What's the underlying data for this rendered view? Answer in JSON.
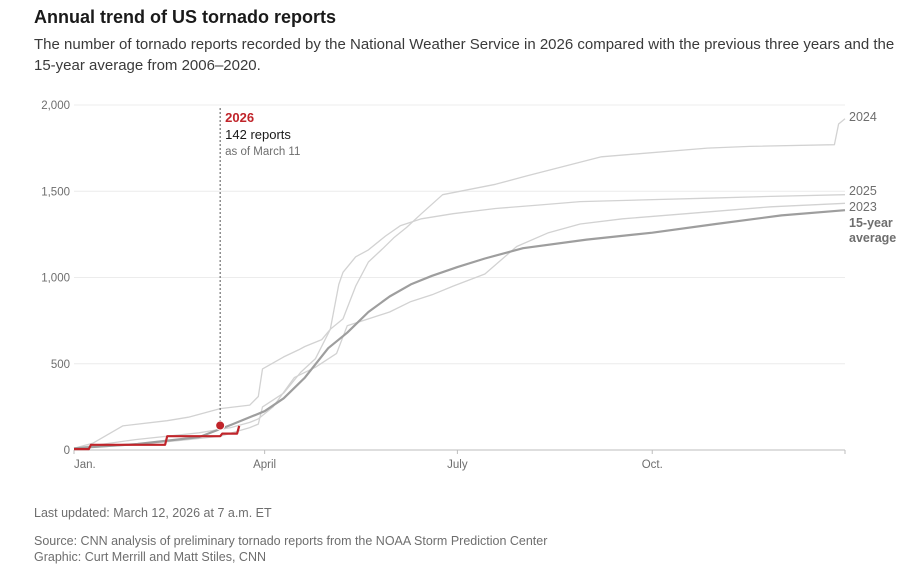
{
  "header": {
    "title": "Annual trend of US tornado reports",
    "subtitle": "The number of tornado reports recorded by the National Weather Service in 2026 compared with the previous three years and the 15-year average from 2006–2020."
  },
  "chart_data": {
    "type": "line",
    "x_unit": "day of year",
    "xlim": [
      1,
      365
    ],
    "ylim": [
      0,
      2000
    ],
    "yticks": [
      0,
      500,
      1000,
      1500,
      2000
    ],
    "ytick_labels": [
      "0",
      "500",
      "1,000",
      "1,500",
      "2,000"
    ],
    "xticks": [
      {
        "day": 1,
        "label": "Jan."
      },
      {
        "day": 91,
        "label": "April"
      },
      {
        "day": 182,
        "label": "July"
      },
      {
        "day": 274,
        "label": "Oct."
      }
    ],
    "series": [
      {
        "name": "2024",
        "label": "2024",
        "color": "#d2d2d2",
        "x": [
          1,
          10,
          24,
          45,
          55,
          70,
          84,
          88,
          90,
          100,
          107,
          110,
          118,
          122,
          128,
          134,
          140,
          147,
          152,
          158,
          165,
          175,
          200,
          215,
          250,
          300,
          320,
          360,
          362,
          365
        ],
        "y": [
          10,
          40,
          140,
          170,
          190,
          240,
          260,
          310,
          470,
          540,
          580,
          600,
          640,
          700,
          760,
          950,
          1090,
          1170,
          1230,
          1290,
          1370,
          1480,
          1540,
          1590,
          1700,
          1750,
          1760,
          1770,
          1890,
          1920
        ]
      },
      {
        "name": "2025",
        "label": "2025",
        "color": "#d2d2d2",
        "x": [
          1,
          30,
          55,
          70,
          84,
          88,
          90,
          100,
          108,
          115,
          122,
          126,
          128,
          134,
          140,
          148,
          155,
          165,
          180,
          200,
          220,
          240,
          270,
          300,
          330,
          365
        ],
        "y": [
          10,
          30,
          60,
          80,
          130,
          150,
          250,
          330,
          450,
          530,
          700,
          960,
          1030,
          1120,
          1160,
          1240,
          1300,
          1340,
          1370,
          1400,
          1420,
          1440,
          1450,
          1460,
          1470,
          1480
        ]
      },
      {
        "name": "2023",
        "label": "2023",
        "color": "#d2d2d2",
        "x": [
          1,
          30,
          60,
          75,
          84,
          88,
          95,
          105,
          115,
          125,
          130,
          140,
          150,
          160,
          170,
          180,
          195,
          210,
          225,
          240,
          260,
          290,
          330,
          365
        ],
        "y": [
          10,
          60,
          100,
          130,
          160,
          180,
          250,
          420,
          480,
          560,
          720,
          760,
          800,
          860,
          900,
          950,
          1020,
          1180,
          1260,
          1310,
          1340,
          1370,
          1410,
          1430
        ]
      },
      {
        "name": "15-year average",
        "label": "15-year\naverage",
        "color": "#9e9e9e",
        "bold": true,
        "x": [
          1,
          31,
          60,
          75,
          91,
          100,
          110,
          121,
          130,
          140,
          150,
          160,
          170,
          182,
          195,
          213,
          243,
          274,
          304,
          335,
          365
        ],
        "y": [
          10,
          35,
          75,
          145,
          225,
          300,
          420,
          590,
          680,
          800,
          890,
          960,
          1010,
          1060,
          1110,
          1170,
          1220,
          1260,
          1310,
          1360,
          1390
        ]
      },
      {
        "name": "2026",
        "label": "2026",
        "color": "#c0242a",
        "bold": true,
        "x": [
          1,
          8,
          9,
          44,
          45,
          70,
          71,
          78,
          79,
          70
        ],
        "y": [
          5,
          5,
          30,
          30,
          80,
          80,
          95,
          95,
          140,
          142
        ]
      }
    ],
    "annotation": {
      "year": "2026",
      "count_text": "142 reports",
      "date_text": "as of March 11",
      "day": 70,
      "value": 142
    }
  },
  "footer": {
    "updated": "Last updated: March 12, 2026 at 7 a.m. ET",
    "source": "Source: CNN analysis of preliminary tornado reports from the NOAA Storm Prediction Center",
    "graphic": "Graphic: Curt Merrill and Matt Stiles, CNN"
  }
}
